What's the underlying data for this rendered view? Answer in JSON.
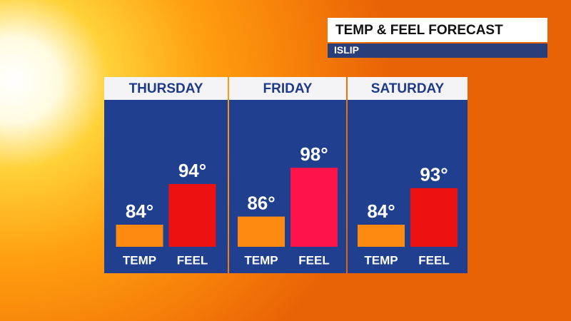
{
  "chart_data": {
    "type": "bar",
    "title": "TEMP & FEEL FORECAST",
    "subtitle": "ISLIP",
    "categories": [
      "THURSDAY",
      "FRIDAY",
      "SATURDAY"
    ],
    "series": [
      {
        "name": "TEMP",
        "colors": [
          "#ff8a12",
          "#ff8a12",
          "#ff8a12"
        ],
        "values": [
          84,
          86,
          84
        ],
        "value_labels": [
          "84°",
          "86°",
          "84°"
        ]
      },
      {
        "name": "FEEL",
        "colors": [
          "#ee1111",
          "#ff1449",
          "#ee1111"
        ],
        "values": [
          94,
          98,
          93
        ],
        "value_labels": [
          "94°",
          "98°",
          "93°"
        ]
      }
    ]
  }
}
